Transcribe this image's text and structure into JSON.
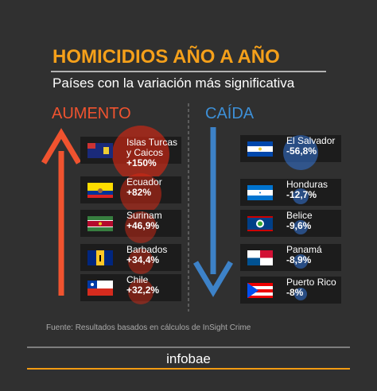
{
  "header": {
    "title": "HOMICIDIOS AÑO A AÑO",
    "subtitle": "Países con la variación más significativa"
  },
  "increase": {
    "heading": "AUMENTO",
    "items": [
      {
        "country": "Islas Turcas y Caicos",
        "change": "+150%"
      },
      {
        "country": "Ecuador",
        "change": "+82%"
      },
      {
        "country": "Surinam",
        "change": "+46,9%"
      },
      {
        "country": "Barbados",
        "change": "+34,4%"
      },
      {
        "country": "Chile",
        "change": "+32,2%"
      }
    ]
  },
  "decrease": {
    "heading": "CAÍDA",
    "items": [
      {
        "country": "El Salvador",
        "change": "-56,8%"
      },
      {
        "country": "Honduras",
        "change": "-12,7%"
      },
      {
        "country": "Belice",
        "change": "-9,6%"
      },
      {
        "country": "Panamá",
        "change": "-8,9%"
      },
      {
        "country": "Puerto Rico",
        "change": "-8%"
      }
    ]
  },
  "footer": {
    "source": "Fuente:  Resultados basados en cálculos de InSight Crime",
    "brand": "infobae"
  }
}
